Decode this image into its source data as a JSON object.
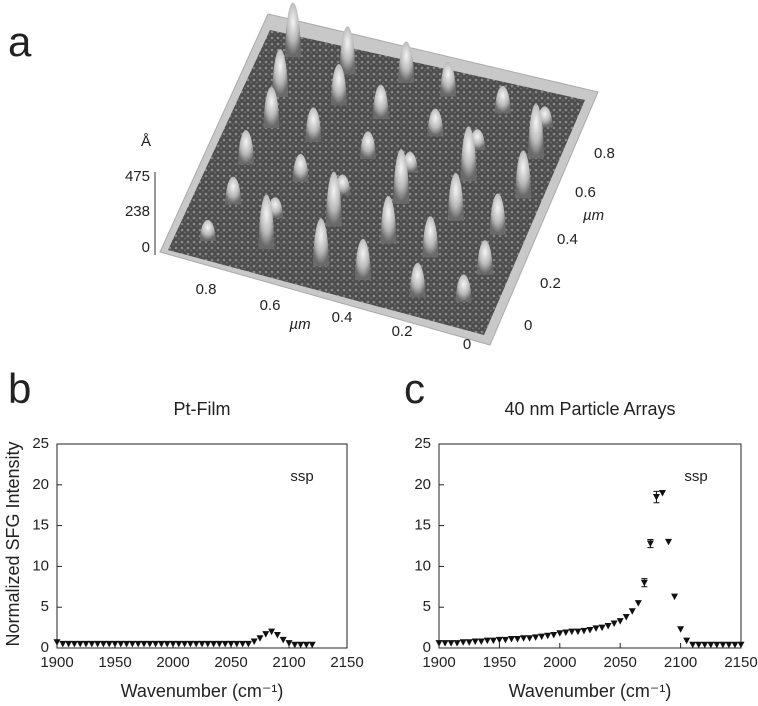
{
  "panel_labels": [
    "a",
    "b",
    "c"
  ],
  "afm_image": {
    "z_unit": "Å",
    "z_ticks": [
      "475",
      "238",
      "0"
    ],
    "x_ticks": [
      "0.8",
      "0.6",
      "0.4",
      "0.2",
      "0"
    ],
    "x_label": "µm",
    "y_ticks": [
      "0",
      "0.2",
      "0.4",
      "0.6",
      "0.8"
    ],
    "y_label": "µm"
  },
  "chart_data": [
    {
      "type": "scatter",
      "title": "Pt-Film",
      "y_label": "Normalized SFG Intensity",
      "x_label": "Wavenumber (cm⁻¹)",
      "annotation": "ssp",
      "color": "#111111",
      "x": [
        1900,
        1905,
        1910,
        1915,
        1920,
        1925,
        1930,
        1935,
        1940,
        1945,
        1950,
        1955,
        1960,
        1965,
        1970,
        1975,
        1980,
        1985,
        1990,
        1995,
        2000,
        2005,
        2010,
        2015,
        2020,
        2025,
        2030,
        2035,
        2040,
        2045,
        2050,
        2055,
        2060,
        2065,
        2070,
        2075,
        2080,
        2085,
        2090,
        2095,
        2100,
        2105,
        2110,
        2115,
        2120
      ],
      "values": [
        0.7,
        0.5,
        0.5,
        0.5,
        0.5,
        0.5,
        0.5,
        0.5,
        0.5,
        0.5,
        0.5,
        0.5,
        0.5,
        0.5,
        0.5,
        0.5,
        0.5,
        0.5,
        0.5,
        0.5,
        0.5,
        0.5,
        0.5,
        0.5,
        0.5,
        0.5,
        0.5,
        0.5,
        0.5,
        0.5,
        0.5,
        0.5,
        0.5,
        0.5,
        0.8,
        1.2,
        1.7,
        2.0,
        1.6,
        1.0,
        0.6,
        0.4,
        0.4,
        0.4,
        0.4
      ],
      "xlim": [
        1900,
        2150
      ],
      "xticks": [
        1900,
        1950,
        2000,
        2050,
        2100,
        2150
      ],
      "ylim": [
        0,
        25
      ],
      "yticks": [
        0,
        5,
        10,
        15,
        20,
        25
      ]
    },
    {
      "type": "scatter",
      "title": "40 nm Particle Arrays",
      "x_label": "Wavenumber (cm⁻¹)",
      "annotation": "ssp",
      "color": "#111111",
      "x": [
        1900,
        1905,
        1910,
        1915,
        1920,
        1925,
        1930,
        1935,
        1940,
        1945,
        1950,
        1955,
        1960,
        1965,
        1970,
        1975,
        1980,
        1985,
        1990,
        1995,
        2000,
        2005,
        2010,
        2015,
        2020,
        2025,
        2030,
        2035,
        2040,
        2045,
        2050,
        2055,
        2060,
        2065,
        2070,
        2075,
        2080,
        2085,
        2090,
        2095,
        2100,
        2105,
        2110,
        2115,
        2120,
        2125,
        2130,
        2135,
        2140,
        2145,
        2150
      ],
      "values": [
        0.6,
        0.6,
        0.6,
        0.6,
        0.7,
        0.7,
        0.8,
        0.8,
        0.9,
        0.9,
        1.0,
        1.0,
        1.1,
        1.1,
        1.2,
        1.2,
        1.3,
        1.4,
        1.5,
        1.6,
        1.8,
        1.9,
        2.0,
        2.0,
        2.1,
        2.2,
        2.4,
        2.5,
        2.7,
        3.0,
        3.3,
        3.8,
        4.5,
        5.5,
        8.0,
        12.8,
        18.5,
        19.0,
        13.0,
        6.3,
        2.3,
        0.9,
        0.4,
        0.4,
        0.4,
        0.4,
        0.4,
        0.4,
        0.4,
        0.4,
        0.4
      ],
      "errors": [
        null,
        null,
        null,
        null,
        null,
        null,
        null,
        null,
        null,
        null,
        null,
        null,
        null,
        null,
        null,
        null,
        null,
        null,
        null,
        null,
        null,
        null,
        null,
        null,
        null,
        null,
        null,
        null,
        null,
        null,
        null,
        null,
        null,
        null,
        0.5,
        0.5,
        0.7,
        null,
        null,
        null,
        null,
        null,
        null,
        null,
        null,
        null,
        null,
        null,
        null,
        null,
        null
      ],
      "xlim": [
        1900,
        2150
      ],
      "xticks": [
        1900,
        1950,
        2000,
        2050,
        2100,
        2150
      ],
      "ylim": [
        0,
        25
      ],
      "yticks": [
        0,
        5,
        10,
        15,
        20,
        25
      ]
    }
  ]
}
